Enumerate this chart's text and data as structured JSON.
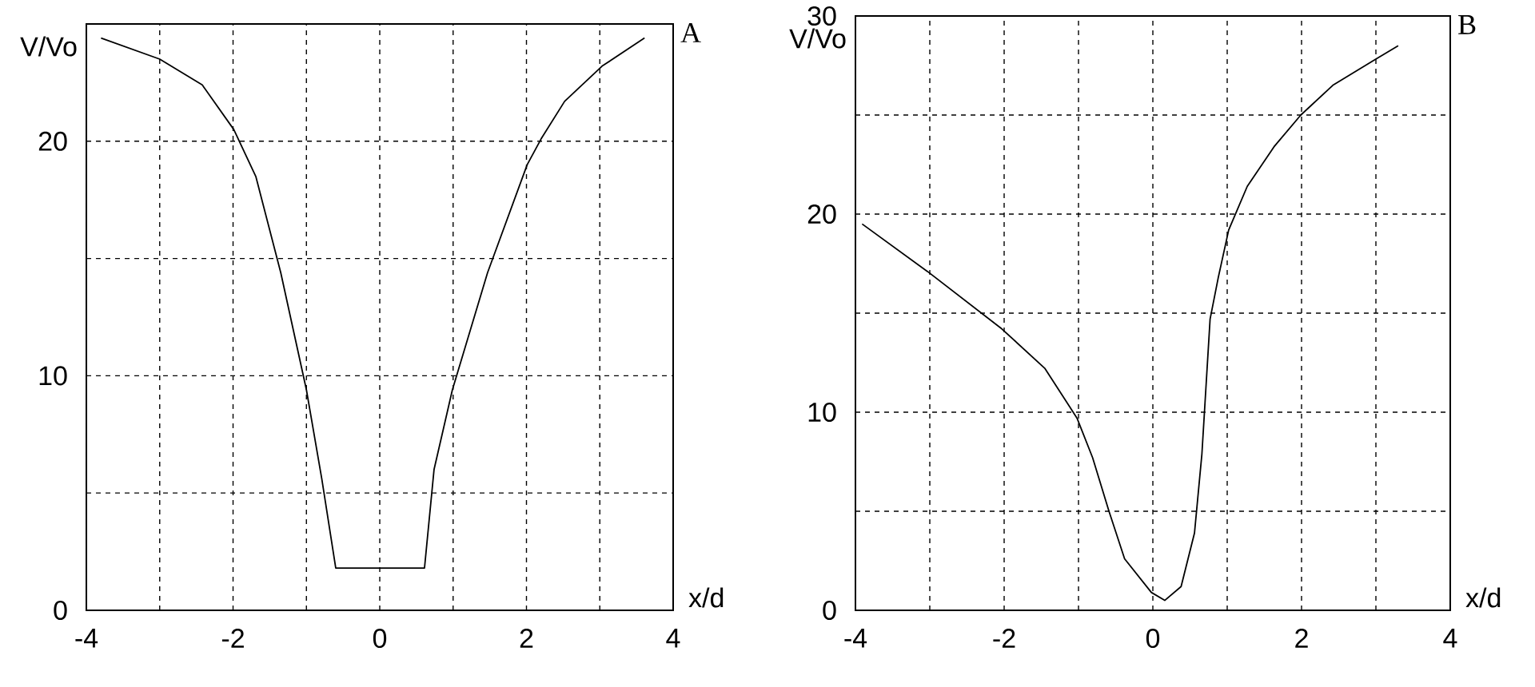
{
  "chart_data": [
    {
      "type": "line",
      "xlabel": "x/d",
      "ylabel": "V/Vo",
      "annotations": [
        "A"
      ],
      "xlim": [
        -4,
        4
      ],
      "ylim": [
        0,
        25
      ],
      "xticks": [
        -4,
        {
          "value": -3,
          "label": null
        },
        -2,
        {
          "value": -1,
          "label": null
        },
        0,
        {
          "value": 1,
          "label": null
        },
        2,
        {
          "value": 3,
          "label": null
        },
        4
      ],
      "yticks": [
        0,
        {
          "value": 5,
          "label": null
        },
        10,
        {
          "value": 15,
          "label": null
        },
        20
      ],
      "grid": true,
      "line_style": "solid",
      "series": [
        {
          "color": "#000000",
          "x": [
            -3.8,
            -3.0,
            -2.42,
            -1.99,
            -1.69,
            -1.35,
            -1.0,
            -0.79,
            -0.6,
            0.61,
            0.74,
            0.99,
            1.47,
            2.01,
            2.2,
            2.52,
            3.03,
            3.61
          ],
          "values": [
            24.4,
            23.5,
            22.4,
            20.5,
            18.5,
            14.4,
            9.4,
            5.6,
            1.8,
            1.8,
            6.0,
            9.4,
            14.4,
            19.0,
            20.1,
            21.7,
            23.2,
            24.4
          ]
        }
      ]
    },
    {
      "type": "line",
      "xlabel": "x/d",
      "ylabel": "V/Vo",
      "annotations": [
        "B"
      ],
      "xlim": [
        -4,
        4
      ],
      "ylim": [
        0,
        30
      ],
      "xticks": [
        -4,
        {
          "value": -3,
          "label": null
        },
        -2,
        {
          "value": -1,
          "label": null
        },
        0,
        {
          "value": 1,
          "label": null
        },
        2,
        {
          "value": 3,
          "label": null
        },
        4
      ],
      "yticks": [
        0,
        {
          "value": 5,
          "label": null
        },
        10,
        {
          "value": 15,
          "label": null
        },
        20,
        {
          "value": 25,
          "label": null
        },
        30
      ],
      "grid": true,
      "line_style": "solid",
      "series": [
        {
          "color": "#000000",
          "x": [
            -3.91,
            -3.03,
            -2.03,
            -1.45,
            -1.02,
            -0.81,
            -0.59,
            -0.38,
            -0.02,
            0.16,
            0.38,
            0.56,
            0.66,
            0.77,
            0.88,
            1.02,
            1.27,
            1.63,
            1.99,
            2.42,
            2.99,
            3.3
          ],
          "values": [
            19.5,
            17.1,
            14.2,
            12.2,
            9.7,
            7.7,
            5.0,
            2.6,
            0.9,
            0.5,
            1.2,
            3.9,
            7.9,
            14.7,
            16.8,
            19.2,
            21.4,
            23.4,
            25.0,
            26.5,
            27.8,
            28.5
          ]
        }
      ]
    }
  ]
}
